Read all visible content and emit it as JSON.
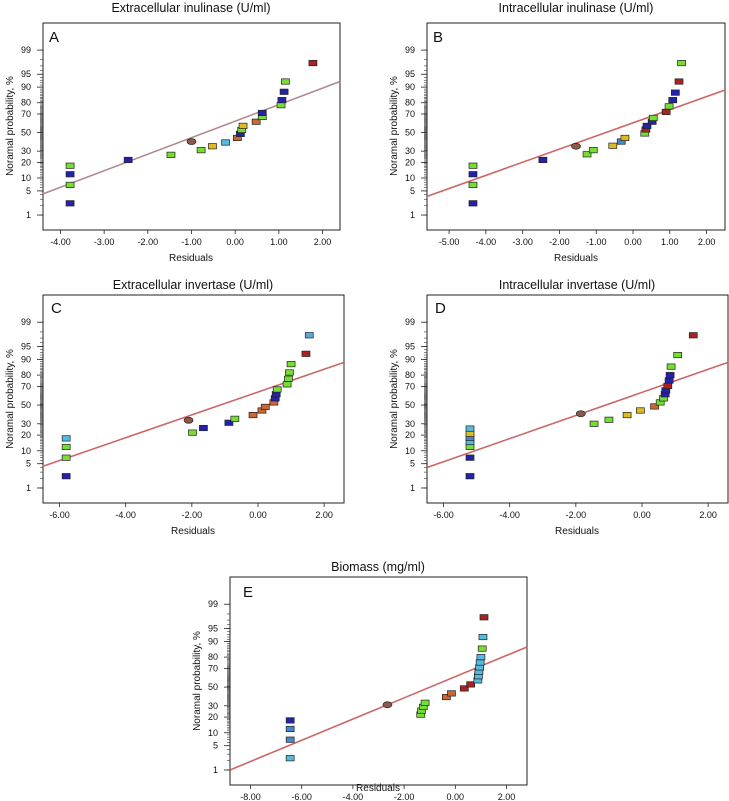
{
  "chart_data": [
    {
      "type": "scatter",
      "panel": "A",
      "title": "Extracellular inulinase (U/ml)",
      "xlabel": "Residuals",
      "ylabel": "Noramal probability, %",
      "xticks": [
        -4.0,
        -3.0,
        -2.0,
        -1.0,
        0.0,
        1.0,
        2.0
      ],
      "xtick_labels": [
        "-4.00",
        "-3.00",
        "-2.00",
        "-1.00",
        "0.00",
        "1.00",
        "2.00"
      ],
      "yticks": [
        1,
        5,
        10,
        20,
        30,
        50,
        70,
        80,
        90,
        95,
        99
      ],
      "ytick_labels": [
        "1",
        "5",
        "10",
        "20",
        "30",
        "50",
        "70",
        "80",
        "90",
        "95",
        "99"
      ],
      "xlim": [
        -4.4,
        2.4
      ],
      "ylim": [
        0.3,
        99.9
      ],
      "line_color": "#b08a8f",
      "fit_line": {
        "x": [
          -4.4,
          2.4
        ],
        "y": [
          4.2,
          92.5
        ]
      },
      "points": [
        {
          "x": -3.78,
          "y": 2.3,
          "color": "#2222aa"
        },
        {
          "x": -3.78,
          "y": 7.0,
          "color": "#77dd33"
        },
        {
          "x": -3.78,
          "y": 12.0,
          "color": "#2222aa"
        },
        {
          "x": -3.78,
          "y": 17.5,
          "color": "#77dd33"
        },
        {
          "x": -2.45,
          "y": 22.0,
          "color": "#2222aa"
        },
        {
          "x": -1.47,
          "y": 26.5,
          "color": "#77dd33"
        },
        {
          "x": -1.0,
          "y": 40.0,
          "color": "#8a5a4a",
          "shape": "ellipse"
        },
        {
          "x": -0.78,
          "y": 31.0,
          "color": "#77dd33"
        },
        {
          "x": -0.52,
          "y": 35.0,
          "color": "#ddbb22"
        },
        {
          "x": -0.22,
          "y": 39.0,
          "color": "#55bbdd"
        },
        {
          "x": 0.05,
          "y": 44.0,
          "color": "#cc6633"
        },
        {
          "x": 0.12,
          "y": 48.5,
          "color": "#2222aa"
        },
        {
          "x": 0.15,
          "y": 53.0,
          "color": "#77dd33"
        },
        {
          "x": 0.18,
          "y": 57.5,
          "color": "#ddbb22"
        },
        {
          "x": 0.48,
          "y": 62.0,
          "color": "#cc6633"
        },
        {
          "x": 0.62,
          "y": 67.0,
          "color": "#77dd33"
        },
        {
          "x": 0.62,
          "y": 71.0,
          "color": "#2222aa"
        },
        {
          "x": 1.05,
          "y": 78.0,
          "color": "#77dd33"
        },
        {
          "x": 1.07,
          "y": 82.0,
          "color": "#2222aa"
        },
        {
          "x": 1.12,
          "y": 87.5,
          "color": "#2222aa"
        },
        {
          "x": 1.15,
          "y": 92.5,
          "color": "#77dd33"
        },
        {
          "x": 1.78,
          "y": 97.5,
          "color": "#aa2222"
        }
      ]
    },
    {
      "type": "scatter",
      "panel": "B",
      "title": "Intracellular inulinase (U/ml)",
      "xlabel": "Residuals",
      "ylabel": "Noramal probability, %",
      "xticks": [
        -5.0,
        -4.0,
        -3.0,
        -2.0,
        -1.0,
        0.0,
        1.0,
        2.0
      ],
      "xtick_labels": [
        "-5.00",
        "-4.00",
        "-3.00",
        "-2.00",
        "-1.00",
        "0.00",
        "1.00",
        "2.00"
      ],
      "yticks": [
        1,
        5,
        10,
        20,
        30,
        50,
        70,
        80,
        90,
        95,
        99
      ],
      "ytick_labels": [
        "1",
        "5",
        "10",
        "20",
        "30",
        "50",
        "70",
        "80",
        "90",
        "95",
        "99"
      ],
      "xlim": [
        -5.6,
        2.5
      ],
      "ylim": [
        0.3,
        99.9
      ],
      "line_color": "#cc6666",
      "fit_line": {
        "x": [
          -5.6,
          2.5
        ],
        "y": [
          3.6,
          88.5
        ]
      },
      "points": [
        {
          "x": -4.35,
          "y": 2.3,
          "color": "#2222aa"
        },
        {
          "x": -4.35,
          "y": 7.0,
          "color": "#77dd33"
        },
        {
          "x": -4.35,
          "y": 12.0,
          "color": "#2222aa"
        },
        {
          "x": -4.35,
          "y": 17.5,
          "color": "#77dd33"
        },
        {
          "x": -2.45,
          "y": 22.0,
          "color": "#2222aa"
        },
        {
          "x": -1.55,
          "y": 35.0,
          "color": "#8a5a4a",
          "shape": "ellipse"
        },
        {
          "x": -1.25,
          "y": 27.0,
          "color": "#77dd33"
        },
        {
          "x": -1.08,
          "y": 31.0,
          "color": "#77dd33"
        },
        {
          "x": -0.55,
          "y": 35.5,
          "color": "#ddbb22"
        },
        {
          "x": -0.32,
          "y": 40.0,
          "color": "#4488cc"
        },
        {
          "x": -0.22,
          "y": 44.0,
          "color": "#ddbb22"
        },
        {
          "x": 0.32,
          "y": 49.0,
          "color": "#77dd33"
        },
        {
          "x": 0.35,
          "y": 53.5,
          "color": "#aa2222"
        },
        {
          "x": 0.38,
          "y": 57.5,
          "color": "#2222aa"
        },
        {
          "x": 0.52,
          "y": 62.0,
          "color": "#2222aa"
        },
        {
          "x": 0.55,
          "y": 66.0,
          "color": "#77dd33"
        },
        {
          "x": 0.9,
          "y": 72.0,
          "color": "#aa2222"
        },
        {
          "x": 0.98,
          "y": 77.0,
          "color": "#77dd33"
        },
        {
          "x": 1.08,
          "y": 82.0,
          "color": "#2222aa"
        },
        {
          "x": 1.15,
          "y": 87.0,
          "color": "#2222aa"
        },
        {
          "x": 1.25,
          "y": 92.5,
          "color": "#aa2222"
        },
        {
          "x": 1.32,
          "y": 97.5,
          "color": "#77dd33"
        }
      ]
    },
    {
      "type": "scatter",
      "panel": "C",
      "title": "Extracellular invertase (U/ml)",
      "xlabel": "Residuals",
      "ylabel": "Noramal probability, %",
      "xticks": [
        -6.0,
        -4.0,
        -2.0,
        0.0,
        2.0
      ],
      "xtick_labels": [
        "-6.00",
        "-4.00",
        "-2.00",
        "0.00",
        "2.00"
      ],
      "yticks": [
        1,
        5,
        10,
        20,
        30,
        50,
        70,
        80,
        90,
        95,
        99
      ],
      "ytick_labels": [
        "1",
        "5",
        "10",
        "20",
        "30",
        "50",
        "70",
        "80",
        "90",
        "95",
        "99"
      ],
      "xlim": [
        -6.5,
        2.6
      ],
      "ylim": [
        0.3,
        99.9
      ],
      "line_color": "#cc6666",
      "fit_line": {
        "x": [
          -6.5,
          2.6
        ],
        "y": [
          4.3,
          88.5
        ]
      },
      "points": [
        {
          "x": -5.8,
          "y": 2.3,
          "color": "#2222aa"
        },
        {
          "x": -5.8,
          "y": 7.0,
          "color": "#77dd33"
        },
        {
          "x": -5.8,
          "y": 12.0,
          "color": "#77dd33"
        },
        {
          "x": -5.8,
          "y": 17.5,
          "color": "#55bbdd"
        },
        {
          "x": -2.1,
          "y": 33.5,
          "color": "#8a5a4a",
          "shape": "ellipse"
        },
        {
          "x": -1.98,
          "y": 22.0,
          "color": "#77dd33"
        },
        {
          "x": -1.65,
          "y": 26.0,
          "color": "#2222aa"
        },
        {
          "x": -0.88,
          "y": 31.0,
          "color": "#2222aa"
        },
        {
          "x": -0.7,
          "y": 35.0,
          "color": "#77dd33"
        },
        {
          "x": -0.15,
          "y": 39.0,
          "color": "#cc6633"
        },
        {
          "x": 0.12,
          "y": 44.0,
          "color": "#cc6633"
        },
        {
          "x": 0.22,
          "y": 48.0,
          "color": "#cc6633"
        },
        {
          "x": 0.48,
          "y": 53.0,
          "color": "#cc6633"
        },
        {
          "x": 0.52,
          "y": 57.5,
          "color": "#2222aa"
        },
        {
          "x": 0.55,
          "y": 62.0,
          "color": "#2222aa"
        },
        {
          "x": 0.58,
          "y": 67.0,
          "color": "#77dd33"
        },
        {
          "x": 0.88,
          "y": 72.0,
          "color": "#77dd33"
        },
        {
          "x": 0.92,
          "y": 77.0,
          "color": "#77dd33"
        },
        {
          "x": 0.95,
          "y": 82.0,
          "color": "#77dd33"
        },
        {
          "x": 1.0,
          "y": 87.5,
          "color": "#77dd33"
        },
        {
          "x": 1.45,
          "y": 92.5,
          "color": "#aa2222"
        },
        {
          "x": 1.55,
          "y": 97.5,
          "color": "#55aadd"
        }
      ]
    },
    {
      "type": "scatter",
      "panel": "D",
      "title": "Intracellular invertase (U/ml)",
      "xlabel": "Residuals",
      "ylabel": "Noramal probability, %",
      "xticks": [
        -6.0,
        -4.0,
        -2.0,
        0.0,
        2.0
      ],
      "xtick_labels": [
        "-6.00",
        "-4.00",
        "-2.00",
        "0.00",
        "2.00"
      ],
      "yticks": [
        1,
        5,
        10,
        20,
        30,
        50,
        70,
        80,
        90,
        95,
        99
      ],
      "ytick_labels": [
        "1",
        "5",
        "10",
        "20",
        "30",
        "50",
        "70",
        "80",
        "90",
        "95",
        "99"
      ],
      "xlim": [
        -6.5,
        2.6
      ],
      "ylim": [
        0.3,
        99.9
      ],
      "line_color": "#cc6666",
      "fit_line": {
        "x": [
          -6.5,
          2.6
        ],
        "y": [
          4.0,
          88.5
        ]
      },
      "points": [
        {
          "x": -5.2,
          "y": 2.3,
          "color": "#2222aa"
        },
        {
          "x": -5.2,
          "y": 7.0,
          "color": "#2222aa"
        },
        {
          "x": -5.2,
          "y": 12.0,
          "color": "#77dd33"
        },
        {
          "x": -5.2,
          "y": 15.0,
          "color": "#55bbdd"
        },
        {
          "x": -5.2,
          "y": 18.0,
          "color": "#4488cc"
        },
        {
          "x": -5.2,
          "y": 21.0,
          "color": "#ddbb22"
        },
        {
          "x": -5.2,
          "y": 25.5,
          "color": "#55bbdd"
        },
        {
          "x": -1.85,
          "y": 40.5,
          "color": "#8a5a4a",
          "shape": "ellipse"
        },
        {
          "x": -1.45,
          "y": 30.0,
          "color": "#77dd33"
        },
        {
          "x": -1.0,
          "y": 34.0,
          "color": "#77dd33"
        },
        {
          "x": -0.45,
          "y": 39.0,
          "color": "#ddbb22"
        },
        {
          "x": -0.05,
          "y": 44.0,
          "color": "#ddbb22"
        },
        {
          "x": 0.38,
          "y": 48.5,
          "color": "#cc6633"
        },
        {
          "x": 0.55,
          "y": 53.0,
          "color": "#77dd33"
        },
        {
          "x": 0.65,
          "y": 57.5,
          "color": "#77dd33"
        },
        {
          "x": 0.7,
          "y": 62.0,
          "color": "#2222aa"
        },
        {
          "x": 0.72,
          "y": 66.0,
          "color": "#2222aa"
        },
        {
          "x": 0.78,
          "y": 70.5,
          "color": "#aa2222"
        },
        {
          "x": 0.82,
          "y": 75.5,
          "color": "#2222aa"
        },
        {
          "x": 0.85,
          "y": 80.0,
          "color": "#2222aa"
        },
        {
          "x": 0.88,
          "y": 86.0,
          "color": "#77dd33"
        },
        {
          "x": 1.08,
          "y": 92.0,
          "color": "#77dd33"
        },
        {
          "x": 1.55,
          "y": 97.5,
          "color": "#aa2222"
        }
      ]
    },
    {
      "type": "scatter",
      "panel": "E",
      "title": "Biomass (mg/ml)",
      "xlabel": "Residuals",
      "ylabel": "Noramal probability, %",
      "xticks": [
        -8.0,
        -6.0,
        -4.0,
        -2.0,
        0.0,
        2.0
      ],
      "xtick_labels": [
        "-8.00",
        "-6.00",
        "-4.00",
        "-2.00",
        "0.00",
        "2.00"
      ],
      "yticks": [
        1,
        5,
        10,
        20,
        30,
        50,
        70,
        80,
        90,
        95,
        99
      ],
      "ytick_labels": [
        "1",
        "5",
        "10",
        "20",
        "30",
        "50",
        "70",
        "80",
        "90",
        "95",
        "99"
      ],
      "xlim": [
        -8.8,
        2.8
      ],
      "ylim": [
        0.3,
        99.9
      ],
      "line_color": "#cc6666",
      "fit_line": {
        "x": [
          -8.8,
          2.8
        ],
        "y": [
          1.0,
          87.0
        ]
      },
      "points": [
        {
          "x": -6.45,
          "y": 2.3,
          "color": "#55bbdd"
        },
        {
          "x": -6.45,
          "y": 7.0,
          "color": "#4488cc"
        },
        {
          "x": -6.45,
          "y": 12.0,
          "color": "#4488cc"
        },
        {
          "x": -6.45,
          "y": 17.5,
          "color": "#2222aa"
        },
        {
          "x": -2.65,
          "y": 31.0,
          "color": "#8a5a4a",
          "shape": "ellipse"
        },
        {
          "x": -1.35,
          "y": 22.0,
          "color": "#77dd33"
        },
        {
          "x": -1.32,
          "y": 25.5,
          "color": "#77dd33"
        },
        {
          "x": -1.25,
          "y": 29.0,
          "color": "#77dd33"
        },
        {
          "x": -1.18,
          "y": 33.0,
          "color": "#77dd33"
        },
        {
          "x": -0.35,
          "y": 39.0,
          "color": "#cc6633"
        },
        {
          "x": -0.15,
          "y": 43.0,
          "color": "#cc6633"
        },
        {
          "x": 0.35,
          "y": 48.5,
          "color": "#aa2222"
        },
        {
          "x": 0.6,
          "y": 53.0,
          "color": "#aa2222"
        },
        {
          "x": 0.88,
          "y": 57.5,
          "color": "#55bbdd"
        },
        {
          "x": 0.9,
          "y": 62.0,
          "color": "#55bbdd"
        },
        {
          "x": 0.92,
          "y": 66.5,
          "color": "#55bbdd"
        },
        {
          "x": 0.95,
          "y": 71.0,
          "color": "#55bbdd"
        },
        {
          "x": 0.97,
          "y": 75.5,
          "color": "#55bbdd"
        },
        {
          "x": 1.0,
          "y": 80.0,
          "color": "#55bbdd"
        },
        {
          "x": 1.05,
          "y": 86.0,
          "color": "#77dd33"
        },
        {
          "x": 1.08,
          "y": 92.0,
          "color": "#55bbdd"
        },
        {
          "x": 1.12,
          "y": 97.5,
          "color": "#aa2222"
        }
      ]
    }
  ]
}
